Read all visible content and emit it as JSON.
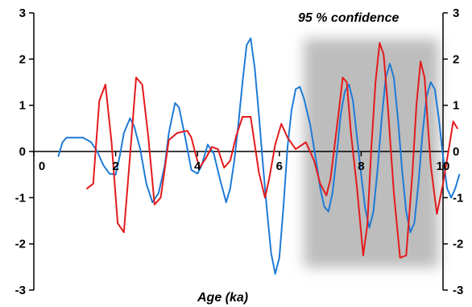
{
  "chart_data": {
    "type": "line",
    "title": "",
    "xlabel": "Age  (ka)",
    "ylabel": "",
    "xlim": [
      0,
      10
    ],
    "ylim": [
      -3,
      3
    ],
    "x_ticks": [
      "0",
      "2",
      "4",
      "6",
      "8",
      "10"
    ],
    "y_ticks": [
      "3",
      "2",
      "1",
      "0",
      "-1",
      "-2",
      "-3"
    ],
    "grid": false,
    "legend": "none",
    "annotation": "95 % confidence",
    "shaded_region": {
      "x": [
        6.6,
        9.9
      ],
      "color": "#bdbdbd"
    },
    "series": [
      {
        "color": "#1f7ad6",
        "points": [
          [
            0.6,
            -0.1
          ],
          [
            0.7,
            0.2
          ],
          [
            0.8,
            0.3
          ],
          [
            1.0,
            0.3
          ],
          [
            1.2,
            0.3
          ],
          [
            1.4,
            0.2
          ],
          [
            1.55,
            0.0
          ],
          [
            1.7,
            -0.3
          ],
          [
            1.85,
            -0.48
          ],
          [
            2.0,
            -0.5
          ],
          [
            2.1,
            -0.1
          ],
          [
            2.2,
            0.4
          ],
          [
            2.35,
            0.72
          ],
          [
            2.45,
            0.55
          ],
          [
            2.6,
            0.05
          ],
          [
            2.75,
            -0.7
          ],
          [
            2.9,
            -1.1
          ],
          [
            3.05,
            -0.9
          ],
          [
            3.2,
            -0.3
          ],
          [
            3.3,
            0.4
          ],
          [
            3.45,
            1.05
          ],
          [
            3.55,
            0.95
          ],
          [
            3.7,
            0.3
          ],
          [
            3.85,
            -0.4
          ],
          [
            4.0,
            -0.48
          ],
          [
            4.1,
            -0.3
          ],
          [
            4.25,
            0.15
          ],
          [
            4.4,
            -0.05
          ],
          [
            4.55,
            -0.6
          ],
          [
            4.7,
            -1.1
          ],
          [
            4.8,
            -0.8
          ],
          [
            4.9,
            -0.2
          ],
          [
            5.0,
            0.6
          ],
          [
            5.1,
            1.5
          ],
          [
            5.2,
            2.3
          ],
          [
            5.3,
            2.45
          ],
          [
            5.4,
            1.8
          ],
          [
            5.5,
            0.8
          ],
          [
            5.6,
            -0.3
          ],
          [
            5.7,
            -1.3
          ],
          [
            5.8,
            -2.2
          ],
          [
            5.9,
            -2.65
          ],
          [
            6.0,
            -2.3
          ],
          [
            6.1,
            -1.2
          ],
          [
            6.2,
            0.1
          ],
          [
            6.3,
            0.9
          ],
          [
            6.4,
            1.35
          ],
          [
            6.5,
            1.4
          ],
          [
            6.6,
            1.15
          ],
          [
            6.75,
            0.6
          ],
          [
            6.9,
            -0.2
          ],
          [
            7.0,
            -0.8
          ],
          [
            7.1,
            -1.2
          ],
          [
            7.2,
            -1.3
          ],
          [
            7.3,
            -0.9
          ],
          [
            7.4,
            -0.1
          ],
          [
            7.5,
            0.8
          ],
          [
            7.6,
            1.3
          ],
          [
            7.7,
            1.45
          ],
          [
            7.8,
            1.1
          ],
          [
            7.9,
            0.3
          ],
          [
            8.0,
            -0.5
          ],
          [
            8.1,
            -1.25
          ],
          [
            8.2,
            -1.65
          ],
          [
            8.3,
            -1.3
          ],
          [
            8.4,
            -0.4
          ],
          [
            8.5,
            0.7
          ],
          [
            8.6,
            1.6
          ],
          [
            8.7,
            1.9
          ],
          [
            8.8,
            1.6
          ],
          [
            8.9,
            0.7
          ],
          [
            9.0,
            -0.4
          ],
          [
            9.1,
            -1.3
          ],
          [
            9.2,
            -1.75
          ],
          [
            9.3,
            -1.55
          ],
          [
            9.4,
            -0.7
          ],
          [
            9.5,
            0.4
          ],
          [
            9.6,
            1.2
          ],
          [
            9.7,
            1.5
          ],
          [
            9.8,
            1.35
          ],
          [
            9.9,
            0.7
          ],
          [
            10.0,
            -0.1
          ],
          [
            10.1,
            -0.8
          ],
          [
            10.2,
            -1.0
          ],
          [
            10.3,
            -0.8
          ],
          [
            10.4,
            -0.5
          ]
        ]
      },
      {
        "color": "#e41a1c",
        "points": [
          [
            1.3,
            -0.8
          ],
          [
            1.45,
            -0.7
          ],
          [
            1.6,
            1.1
          ],
          [
            1.75,
            1.45
          ],
          [
            1.9,
            0.2
          ],
          [
            2.05,
            -1.55
          ],
          [
            2.2,
            -1.75
          ],
          [
            2.35,
            -0.1
          ],
          [
            2.5,
            1.6
          ],
          [
            2.65,
            1.45
          ],
          [
            2.8,
            0.3
          ],
          [
            2.95,
            -1.15
          ],
          [
            3.1,
            -1.0
          ],
          [
            3.3,
            0.25
          ],
          [
            3.5,
            0.4
          ],
          [
            3.75,
            0.45
          ],
          [
            3.85,
            0.3
          ],
          [
            3.95,
            -0.05
          ],
          [
            4.05,
            -0.35
          ],
          [
            4.2,
            -0.15
          ],
          [
            4.35,
            0.1
          ],
          [
            4.5,
            0.05
          ],
          [
            4.65,
            -0.35
          ],
          [
            4.8,
            -0.2
          ],
          [
            4.95,
            0.35
          ],
          [
            5.1,
            0.75
          ],
          [
            5.3,
            0.75
          ],
          [
            5.5,
            -0.45
          ],
          [
            5.65,
            -1.0
          ],
          [
            5.75,
            -0.6
          ],
          [
            5.9,
            0.15
          ],
          [
            6.05,
            0.6
          ],
          [
            6.2,
            0.3
          ],
          [
            6.4,
            0.05
          ],
          [
            6.65,
            0.2
          ],
          [
            6.85,
            -0.2
          ],
          [
            7.0,
            -0.7
          ],
          [
            7.15,
            -0.95
          ],
          [
            7.25,
            -0.6
          ],
          [
            7.45,
            0.85
          ],
          [
            7.55,
            1.6
          ],
          [
            7.65,
            1.5
          ],
          [
            7.75,
            0.4
          ],
          [
            7.9,
            -0.8
          ],
          [
            8.05,
            -2.25
          ],
          [
            8.15,
            -1.6
          ],
          [
            8.25,
            0.1
          ],
          [
            8.35,
            1.5
          ],
          [
            8.45,
            2.35
          ],
          [
            8.55,
            2.1
          ],
          [
            8.65,
            1.0
          ],
          [
            8.8,
            -0.9
          ],
          [
            8.95,
            -2.3
          ],
          [
            9.1,
            -2.25
          ],
          [
            9.25,
            -0.5
          ],
          [
            9.35,
            1.0
          ],
          [
            9.45,
            1.95
          ],
          [
            9.55,
            1.6
          ],
          [
            9.7,
            -0.3
          ],
          [
            9.85,
            -1.35
          ],
          [
            10.0,
            -0.7
          ],
          [
            10.15,
            0.1
          ],
          [
            10.25,
            0.65
          ],
          [
            10.35,
            0.5
          ]
        ]
      }
    ]
  }
}
